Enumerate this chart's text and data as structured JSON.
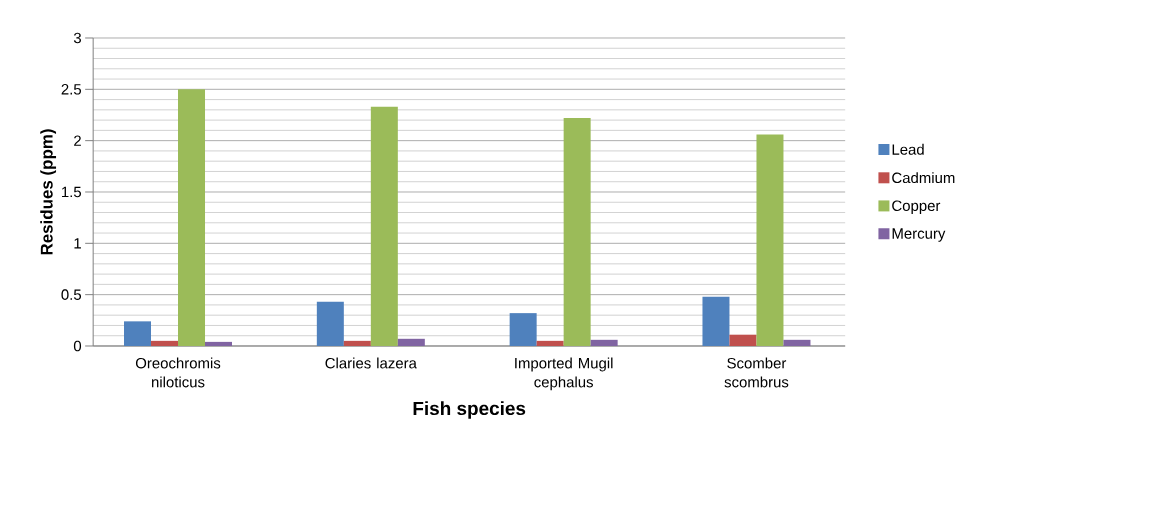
{
  "chart_data": {
    "type": "bar",
    "xlabel": "Fish species",
    "ylabel": "Residues (ppm)",
    "categories": [
      "Oreochromis niloticus",
      "Claries lazera",
      "Imported Mugil cephalus",
      "Scomber scombrus"
    ],
    "series": [
      {
        "name": "Lead",
        "color": "#4f81bd",
        "values": [
          0.24,
          0.43,
          0.32,
          0.48
        ]
      },
      {
        "name": "Cadmium",
        "color": "#c0504d",
        "values": [
          0.05,
          0.05,
          0.05,
          0.11
        ]
      },
      {
        "name": "Copper",
        "color": "#9bbb59",
        "values": [
          2.5,
          2.33,
          2.22,
          2.06
        ]
      },
      {
        "name": "Mercury",
        "color": "#8064a2",
        "values": [
          0.04,
          0.07,
          0.06,
          0.06
        ]
      }
    ],
    "ylim": [
      0,
      3
    ],
    "yticks": [
      0,
      0.5,
      1,
      1.5,
      2,
      2.5,
      3
    ],
    "grid": "y",
    "legend": "right"
  }
}
